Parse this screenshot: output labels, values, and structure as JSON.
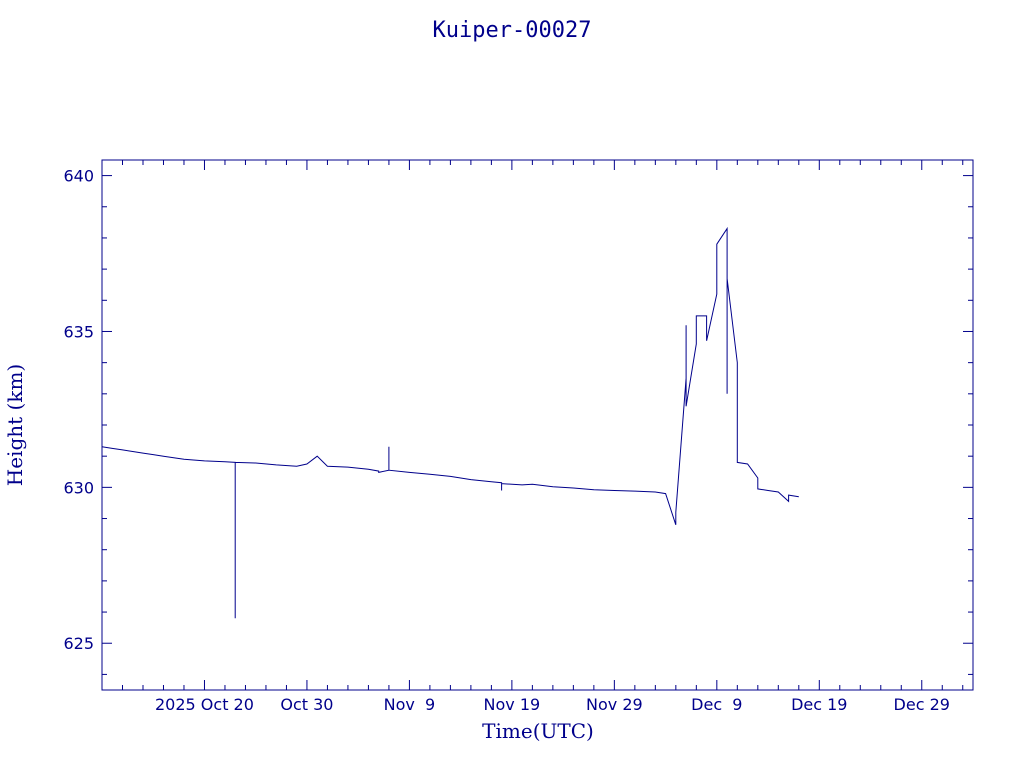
{
  "chart_data": {
    "type": "line",
    "title": "Kuiper-00027",
    "xlabel": "Time(UTC)",
    "ylabel": "Height (km)",
    "color": "#00008b",
    "x_range": [
      "2025-10-10",
      "2026-01-03"
    ],
    "ylim": [
      623.5,
      640.5
    ],
    "x_ticks": [
      {
        "date": "2025-10-20",
        "label": "2025 Oct 20"
      },
      {
        "date": "2025-10-30",
        "label": "Oct 30"
      },
      {
        "date": "2025-11-09",
        "label": "Nov  9"
      },
      {
        "date": "2025-11-19",
        "label": "Nov 19"
      },
      {
        "date": "2025-11-29",
        "label": "Nov 29"
      },
      {
        "date": "2025-12-09",
        "label": "Dec  9"
      },
      {
        "date": "2025-12-19",
        "label": "Dec 19"
      },
      {
        "date": "2025-12-29",
        "label": "Dec 29"
      }
    ],
    "y_ticks": [
      {
        "value": 625,
        "label": "625"
      },
      {
        "value": 630,
        "label": "630"
      },
      {
        "value": 635,
        "label": "635"
      },
      {
        "value": 640,
        "label": "640"
      }
    ],
    "series": [
      {
        "points": [
          [
            "2025-10-10",
            631.3
          ],
          [
            "2025-10-11",
            631.25
          ],
          [
            "2025-10-12",
            631.2
          ],
          [
            "2025-10-13",
            631.15
          ],
          [
            "2025-10-14",
            631.1
          ],
          [
            "2025-10-15",
            631.05
          ],
          [
            "2025-10-16",
            631.0
          ],
          [
            "2025-10-17",
            630.95
          ],
          [
            "2025-10-18",
            630.9
          ],
          [
            "2025-10-20",
            630.85
          ],
          [
            "2025-10-22",
            630.82
          ],
          [
            "2025-10-23",
            630.8
          ],
          [
            "2025-10-23",
            625.8
          ],
          [
            "2025-10-23",
            630.8
          ],
          [
            "2025-10-25",
            630.78
          ],
          [
            "2025-10-27",
            630.72
          ],
          [
            "2025-10-29",
            630.68
          ],
          [
            "2025-10-30",
            630.75
          ],
          [
            "2025-10-31",
            631.0
          ],
          [
            "2025-11-01",
            630.68
          ],
          [
            "2025-11-03",
            630.65
          ],
          [
            "2025-11-05",
            630.58
          ],
          [
            "2025-11-06",
            630.52
          ],
          [
            "2025-11-06",
            630.48
          ],
          [
            "2025-11-07",
            630.55
          ],
          [
            "2025-11-07",
            631.3
          ],
          [
            "2025-11-07",
            630.55
          ],
          [
            "2025-11-09",
            630.48
          ],
          [
            "2025-11-11",
            630.42
          ],
          [
            "2025-11-13",
            630.35
          ],
          [
            "2025-11-15",
            630.25
          ],
          [
            "2025-11-17",
            630.18
          ],
          [
            "2025-11-18",
            630.15
          ],
          [
            "2025-11-18",
            629.9
          ],
          [
            "2025-11-18",
            630.12
          ],
          [
            "2025-11-20",
            630.08
          ],
          [
            "2025-11-21",
            630.1
          ],
          [
            "2025-11-23",
            630.02
          ],
          [
            "2025-11-25",
            629.98
          ],
          [
            "2025-11-27",
            629.92
          ],
          [
            "2025-11-29",
            629.9
          ],
          [
            "2025-12-01",
            629.88
          ],
          [
            "2025-12-03",
            629.85
          ],
          [
            "2025-12-04",
            629.8
          ],
          [
            "2025-12-05",
            628.8
          ],
          [
            "2025-12-05",
            629.2
          ],
          [
            "2025-12-06",
            633.5
          ],
          [
            "2025-12-06",
            635.2
          ],
          [
            "2025-12-06",
            632.6
          ],
          [
            "2025-12-07",
            634.6
          ],
          [
            "2025-12-07",
            635.5
          ],
          [
            "2025-12-08",
            635.5
          ],
          [
            "2025-12-08",
            634.7
          ],
          [
            "2025-12-09",
            636.2
          ],
          [
            "2025-12-09",
            637.5
          ],
          [
            "2025-12-09",
            637.8
          ],
          [
            "2025-12-10",
            638.3
          ],
          [
            "2025-12-10",
            636.0
          ],
          [
            "2025-12-10",
            633.0
          ],
          [
            "2025-12-10",
            636.7
          ],
          [
            "2025-12-11",
            634.0
          ],
          [
            "2025-12-11",
            630.8
          ],
          [
            "2025-12-12",
            630.75
          ],
          [
            "2025-12-13",
            630.3
          ],
          [
            "2025-12-13",
            629.95
          ],
          [
            "2025-12-14",
            629.9
          ],
          [
            "2025-12-15",
            629.85
          ],
          [
            "2025-12-16",
            629.55
          ],
          [
            "2025-12-16",
            629.75
          ],
          [
            "2025-12-17",
            629.7
          ]
        ]
      }
    ]
  }
}
